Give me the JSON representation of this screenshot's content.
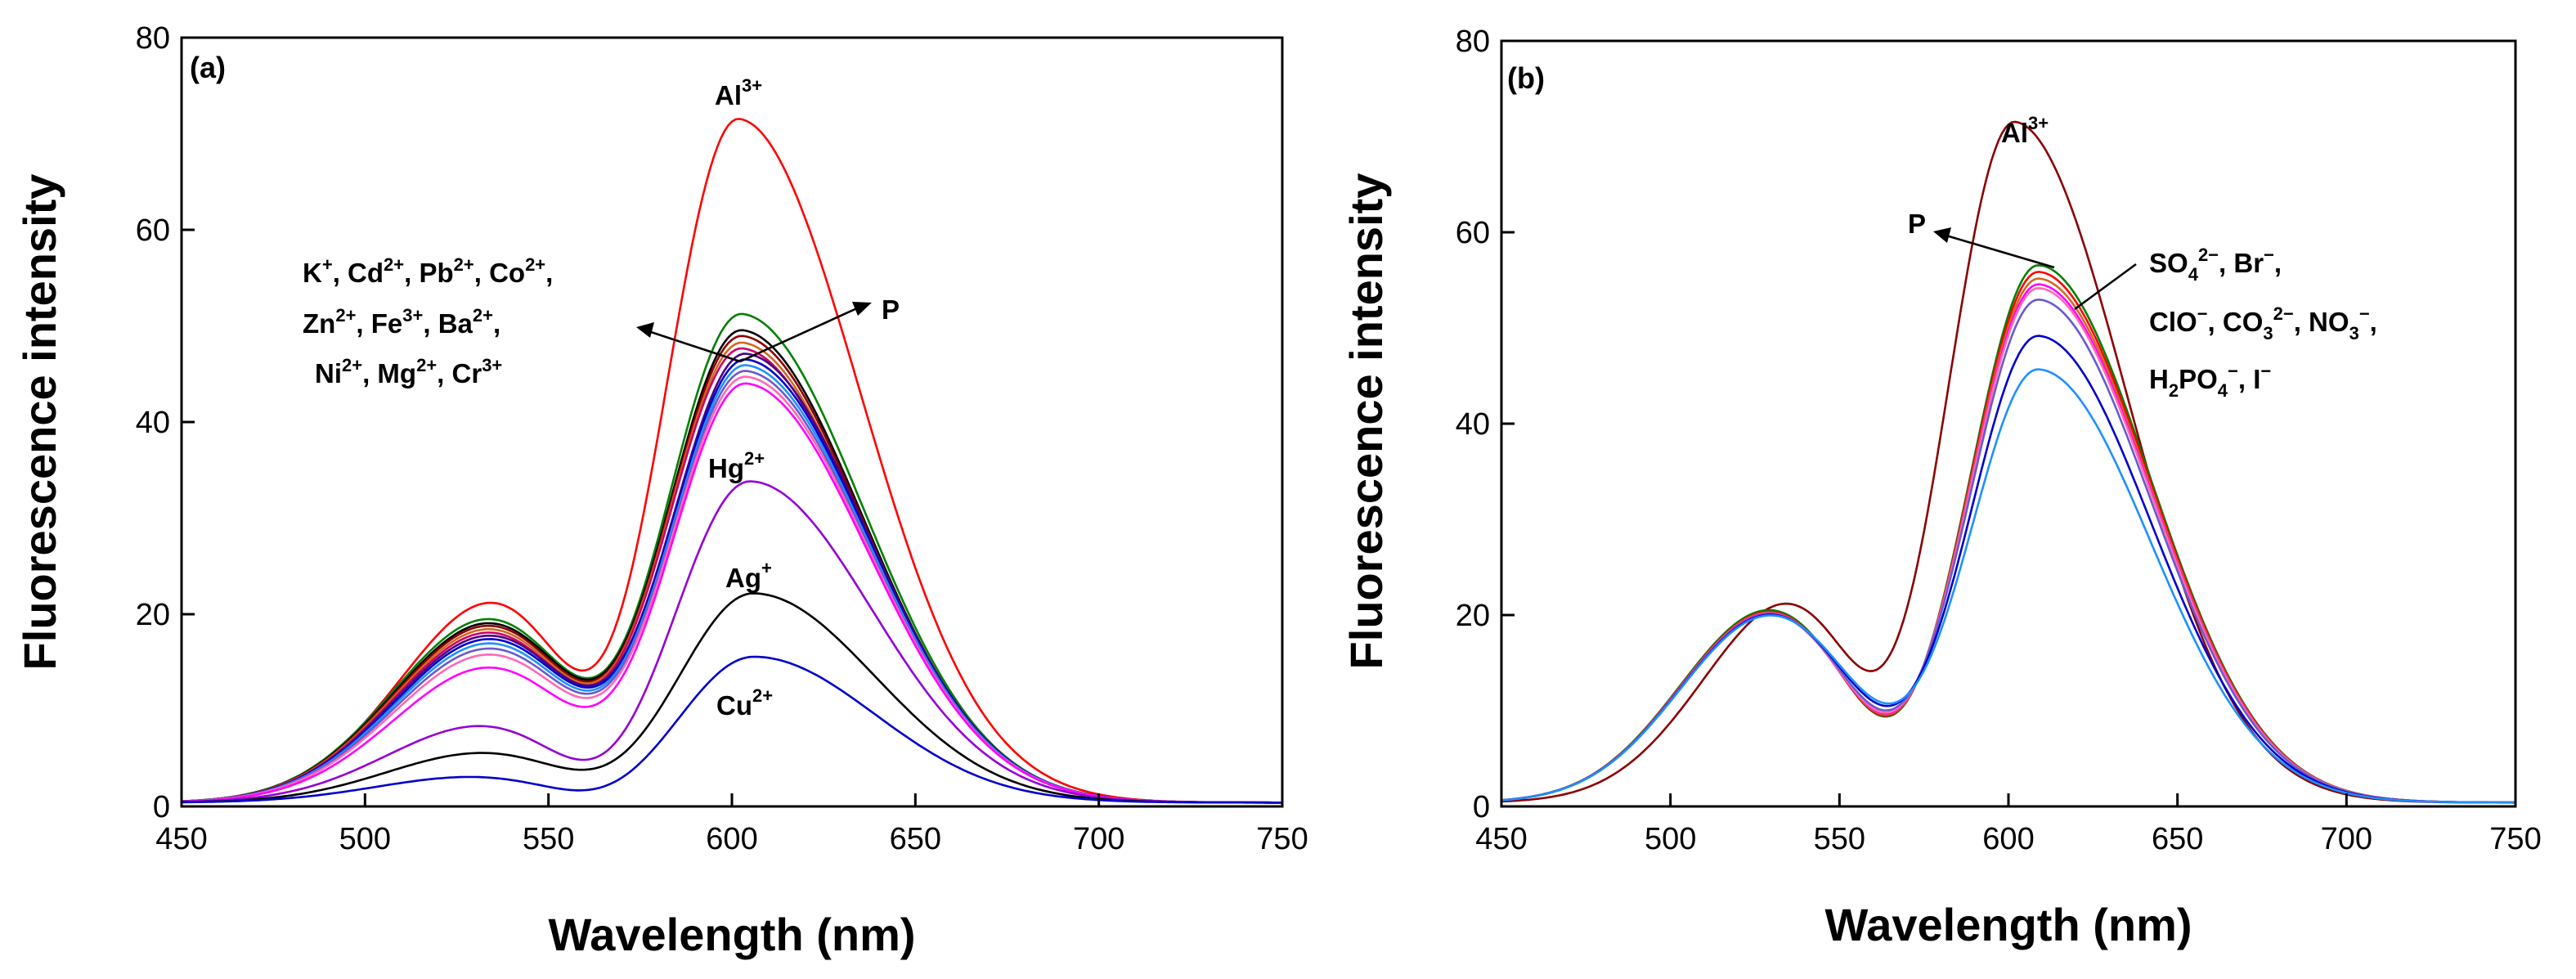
{
  "chart_data": [
    {
      "type": "line",
      "panel_label": "(a)",
      "xlabel": "Wavelength (nm)",
      "ylabel": "Fluorescence intensity",
      "xlim": [
        450,
        750
      ],
      "ylim": [
        0,
        80
      ],
      "xticks": [
        450,
        500,
        550,
        600,
        650,
        700,
        750
      ],
      "yticks": [
        0,
        20,
        40,
        60,
        80
      ],
      "annotations": {
        "al": "Al3+",
        "p": "P",
        "interfering_line1": "K+, Cd2+, Pb2+, Co2+,",
        "interfering_line2": "Zn2+, Fe3+, Ba2+,",
        "interfering_line3": "Ni2+, Mg2+, Cr3+",
        "hg": "Hg2+",
        "ag": "Ag+",
        "cu": "Cu2+"
      },
      "series": [
        {
          "name": "Al3+",
          "color": "#ff0000",
          "peak1": 23.8,
          "peak1_x": 537,
          "valley": 16.2,
          "peak2": 71.5,
          "peak2_x": 602
        },
        {
          "name": "P",
          "color": "#008000",
          "peak1": 21.5,
          "peak1_x": 535,
          "valley": 14.0,
          "peak2": 51.0,
          "peak2_x": 603
        },
        {
          "name": "K+",
          "color": "#000000",
          "peak1": 21.0,
          "peak1_x": 535,
          "valley": 13.8,
          "peak2": 49.3,
          "peak2_x": 603
        },
        {
          "name": "Cd2+",
          "color": "#8b0000",
          "peak1": 20.7,
          "peak1_x": 535,
          "valley": 13.6,
          "peak2": 48.7,
          "peak2_x": 603
        },
        {
          "name": "Pb2+",
          "color": "#d2691e",
          "peak1": 20.3,
          "peak1_x": 535,
          "valley": 13.4,
          "peak2": 48.0,
          "peak2_x": 603
        },
        {
          "name": "Co2+",
          "color": "#cc0066",
          "peak1": 19.9,
          "peak1_x": 535,
          "valley": 13.2,
          "peak2": 47.4,
          "peak2_x": 603
        },
        {
          "name": "Zn2+",
          "color": "#4b0082",
          "peak1": 19.5,
          "peak1_x": 535,
          "valley": 13.0,
          "peak2": 46.8,
          "peak2_x": 604
        },
        {
          "name": "Fe3+",
          "color": "#0000cd",
          "peak1": 19.1,
          "peak1_x": 535,
          "valley": 12.8,
          "peak2": 46.2,
          "peak2_x": 604
        },
        {
          "name": "Ba2+",
          "color": "#1e90ff",
          "peak1": 18.6,
          "peak1_x": 535,
          "valley": 12.5,
          "peak2": 45.6,
          "peak2_x": 604
        },
        {
          "name": "Ni2+",
          "color": "#6a5acd",
          "peak1": 18.0,
          "peak1_x": 535,
          "valley": 12.2,
          "peak2": 45.0,
          "peak2_x": 604
        },
        {
          "name": "Mg2+",
          "color": "#ff69b4",
          "peak1": 17.3,
          "peak1_x": 535,
          "valley": 11.8,
          "peak2": 44.4,
          "peak2_x": 604
        },
        {
          "name": "Cr3+",
          "color": "#ff00ff",
          "peak1": 15.8,
          "peak1_x": 535,
          "valley": 11.0,
          "peak2": 43.7,
          "peak2_x": 604
        },
        {
          "name": "Hg2+",
          "color": "#9400d3",
          "peak1": 9.0,
          "peak1_x": 533,
          "valley": 5.4,
          "peak2": 33.5,
          "peak2_x": 605
        },
        {
          "name": "Ag+",
          "color": "#000000",
          "peak1": 5.8,
          "peak1_x": 533,
          "valley": 4.0,
          "peak2": 21.8,
          "peak2_x": 606
        },
        {
          "name": "Cu2+",
          "color": "#0000cd",
          "peak1": 3.0,
          "peak1_x": 530,
          "valley": 1.8,
          "peak2": 15.2,
          "peak2_x": 606
        }
      ]
    },
    {
      "type": "line",
      "panel_label": "(b)",
      "xlabel": "Wavelength (nm)",
      "ylabel": "Fluorescence intensity",
      "xlim": [
        450,
        750
      ],
      "ylim": [
        0,
        80
      ],
      "xticks": [
        450,
        500,
        550,
        600,
        650,
        700,
        750
      ],
      "yticks": [
        0,
        20,
        40,
        60,
        80
      ],
      "annotations": {
        "al": "Al3+",
        "p": "P",
        "anion_line1": "SO42−, Br−,",
        "anion_line2": "ClO−, CO32−, NO3−,",
        "anion_line3": "H2PO4−, I−"
      },
      "series": [
        {
          "name": "Al3+",
          "color": "#8b0000",
          "peak1": 23.8,
          "peak1_x": 537,
          "valley": 16.2,
          "peak2": 71.5,
          "peak2_x": 602
        },
        {
          "name": "P",
          "color": "#008000",
          "peak1": 22.5,
          "peak1_x": 530,
          "valley": 9.2,
          "peak2": 56.2,
          "peak2_x": 609
        },
        {
          "name": "SO42−",
          "color": "#ff0000",
          "peak1": 22.3,
          "peak1_x": 530,
          "valley": 9.3,
          "peak2": 55.5,
          "peak2_x": 609
        },
        {
          "name": "Br−",
          "color": "#d2691e",
          "peak1": 22.2,
          "peak1_x": 530,
          "valley": 9.4,
          "peak2": 54.8,
          "peak2_x": 609
        },
        {
          "name": "ClO−",
          "color": "#ff00ff",
          "peak1": 22.1,
          "peak1_x": 530,
          "valley": 9.5,
          "peak2": 54.2,
          "peak2_x": 609
        },
        {
          "name": "CO32−",
          "color": "#ff69b4",
          "peak1": 22.0,
          "peak1_x": 530,
          "valley": 9.6,
          "peak2": 53.8,
          "peak2_x": 609
        },
        {
          "name": "NO3−",
          "color": "#6a5acd",
          "peak1": 22.0,
          "peak1_x": 530,
          "valley": 9.8,
          "peak2": 52.6,
          "peak2_x": 609
        },
        {
          "name": "H2PO4−",
          "color": "#0000cd",
          "peak1": 21.9,
          "peak1_x": 530,
          "valley": 10.2,
          "peak2": 48.8,
          "peak2_x": 609
        },
        {
          "name": "I−",
          "color": "#1e90ff",
          "peak1": 21.8,
          "peak1_x": 530,
          "valley": 10.4,
          "peak2": 45.3,
          "peak2_x": 609
        }
      ]
    }
  ]
}
